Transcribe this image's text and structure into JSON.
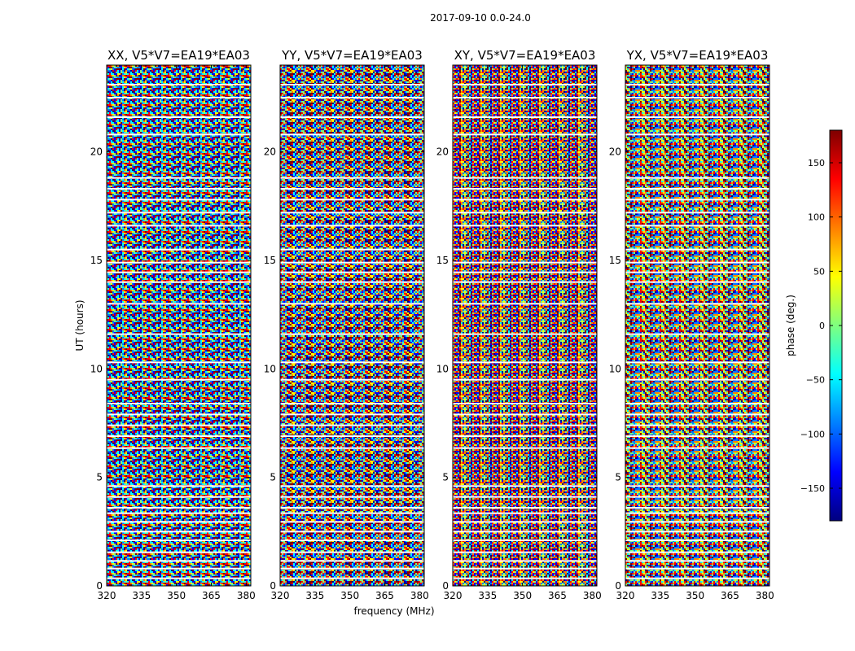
{
  "chart_data": {
    "type": "heatmap",
    "suptitle": "2017-09-10 0.0-24.0",
    "xlabel": "frequency (MHz)",
    "ylabel": "UT (hours)",
    "xlim": [
      320,
      382
    ],
    "ylim": [
      0,
      24
    ],
    "xticks": [
      "320",
      "335",
      "350",
      "365",
      "380"
    ],
    "yticks": [
      "0",
      "5",
      "10",
      "15",
      "20"
    ],
    "panels": [
      {
        "title": "XX, V5*V7=EA19*EA03",
        "pol": "XX"
      },
      {
        "title": "YY, V5*V7=EA19*EA03",
        "pol": "YY"
      },
      {
        "title": "XY, V5*V7=EA19*EA03",
        "pol": "XY"
      },
      {
        "title": "YX, V5*V7=EA19*EA03",
        "pol": "YX"
      }
    ],
    "flagged_time_gaps_hours": [
      0.35,
      0.8,
      1.15,
      1.55,
      2.1,
      2.5,
      2.95,
      3.35,
      3.6,
      4.1,
      4.6,
      6.35,
      6.9,
      7.4,
      7.9,
      8.4,
      9.5,
      10.3,
      11.6,
      13.0,
      14.0,
      14.45,
      14.9,
      15.5,
      16.6,
      17.2,
      17.8,
      18.3,
      18.8,
      20.8,
      21.6,
      22.5,
      23.1
    ],
    "colorbar": {
      "label": "phase (deg.)",
      "range": [
        -180,
        180
      ],
      "ticks": [
        "150",
        "100",
        "50",
        "0",
        "−50",
        "−100",
        "−150"
      ],
      "colormap": [
        "#00007f",
        "#0000ff",
        "#007fff",
        "#00ffff",
        "#7fff7f",
        "#ffff00",
        "#ff7f00",
        "#ff0000",
        "#7f0000"
      ]
    }
  }
}
